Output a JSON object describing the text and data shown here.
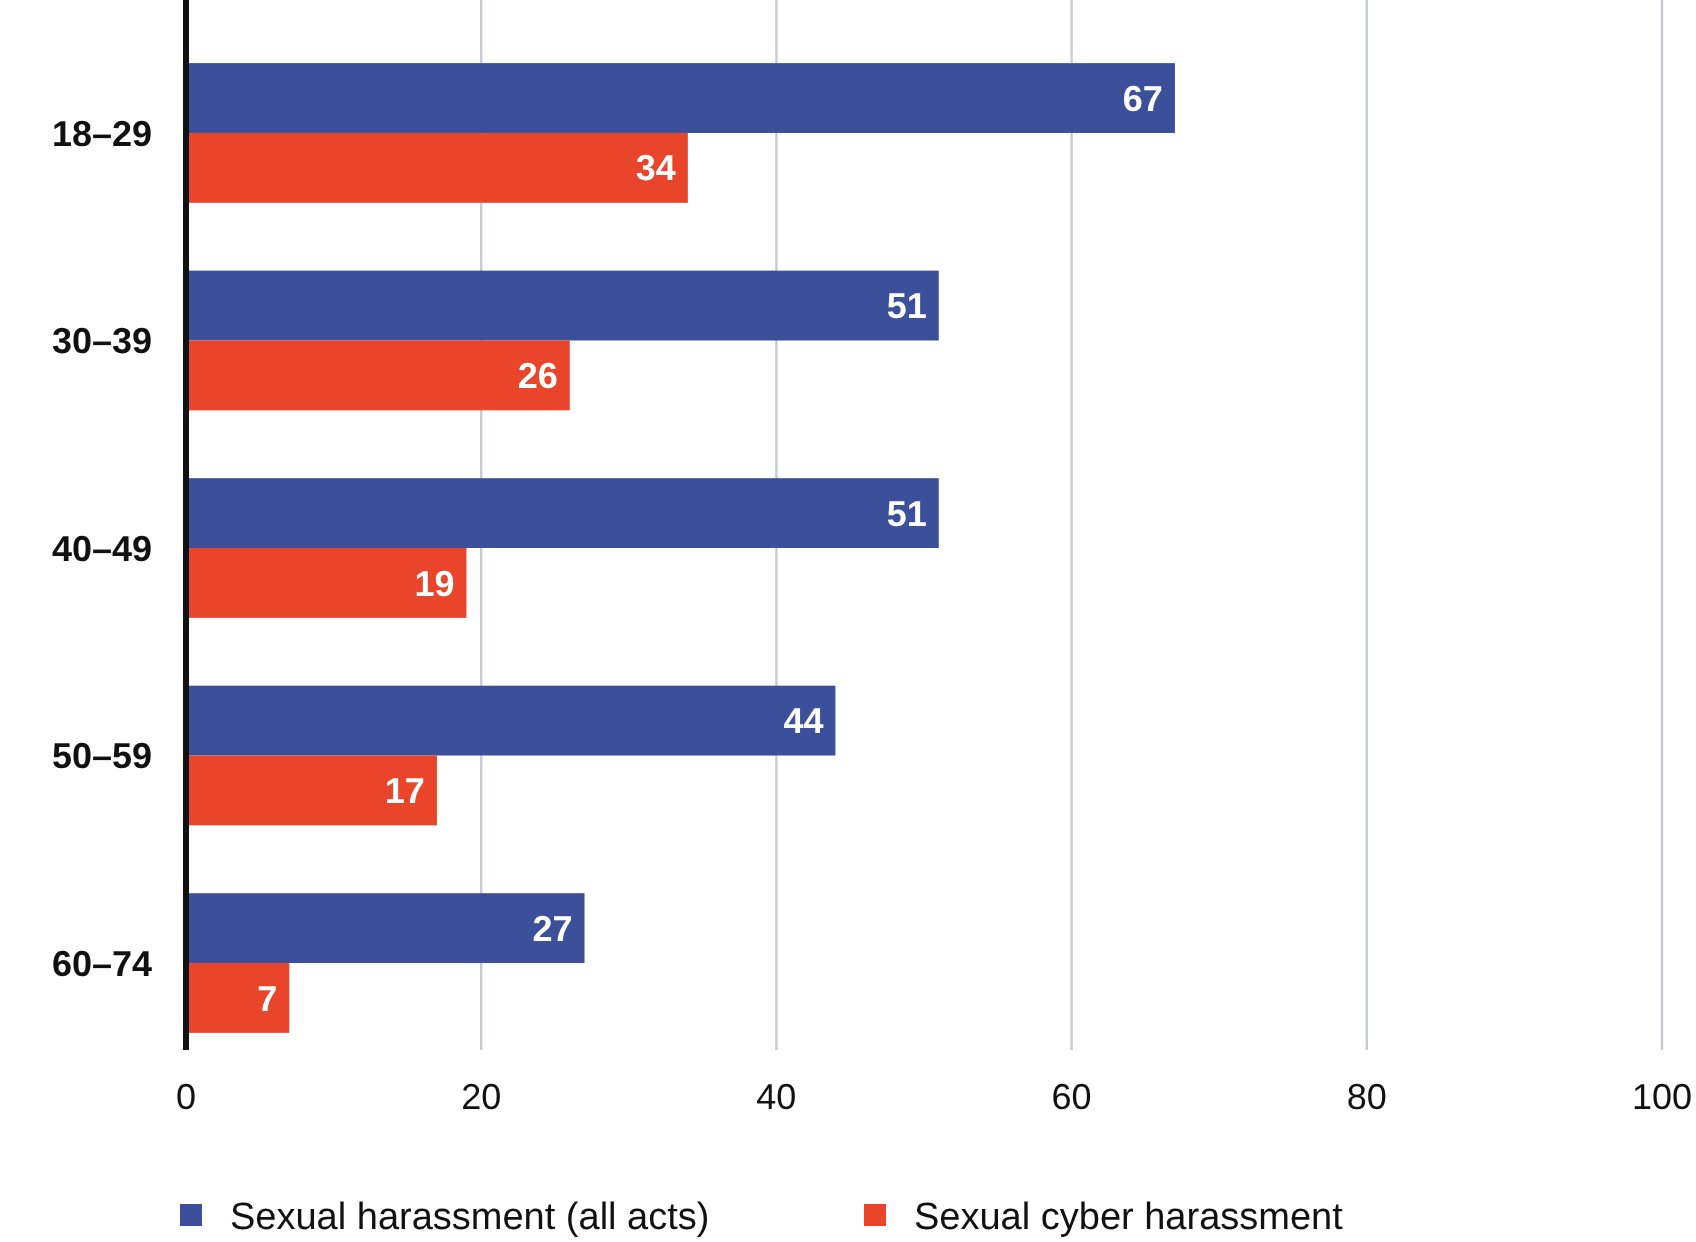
{
  "chart_data": {
    "type": "bar",
    "orientation": "horizontal",
    "categories": [
      "18–29",
      "30–39",
      "40–49",
      "50–59",
      "60–74"
    ],
    "series": [
      {
        "name": "Sexual harassment (all acts)",
        "color": "#3b4f9b",
        "values": [
          67,
          51,
          51,
          44,
          27
        ]
      },
      {
        "name": "Sexual cyber harassment",
        "color": "#e8452a",
        "values": [
          34,
          26,
          19,
          17,
          7
        ]
      }
    ],
    "xlim": [
      0,
      100
    ],
    "xticks": [
      0,
      20,
      40,
      60,
      80,
      100
    ],
    "grid": "x",
    "legend": "bottom",
    "data_labels": true
  }
}
